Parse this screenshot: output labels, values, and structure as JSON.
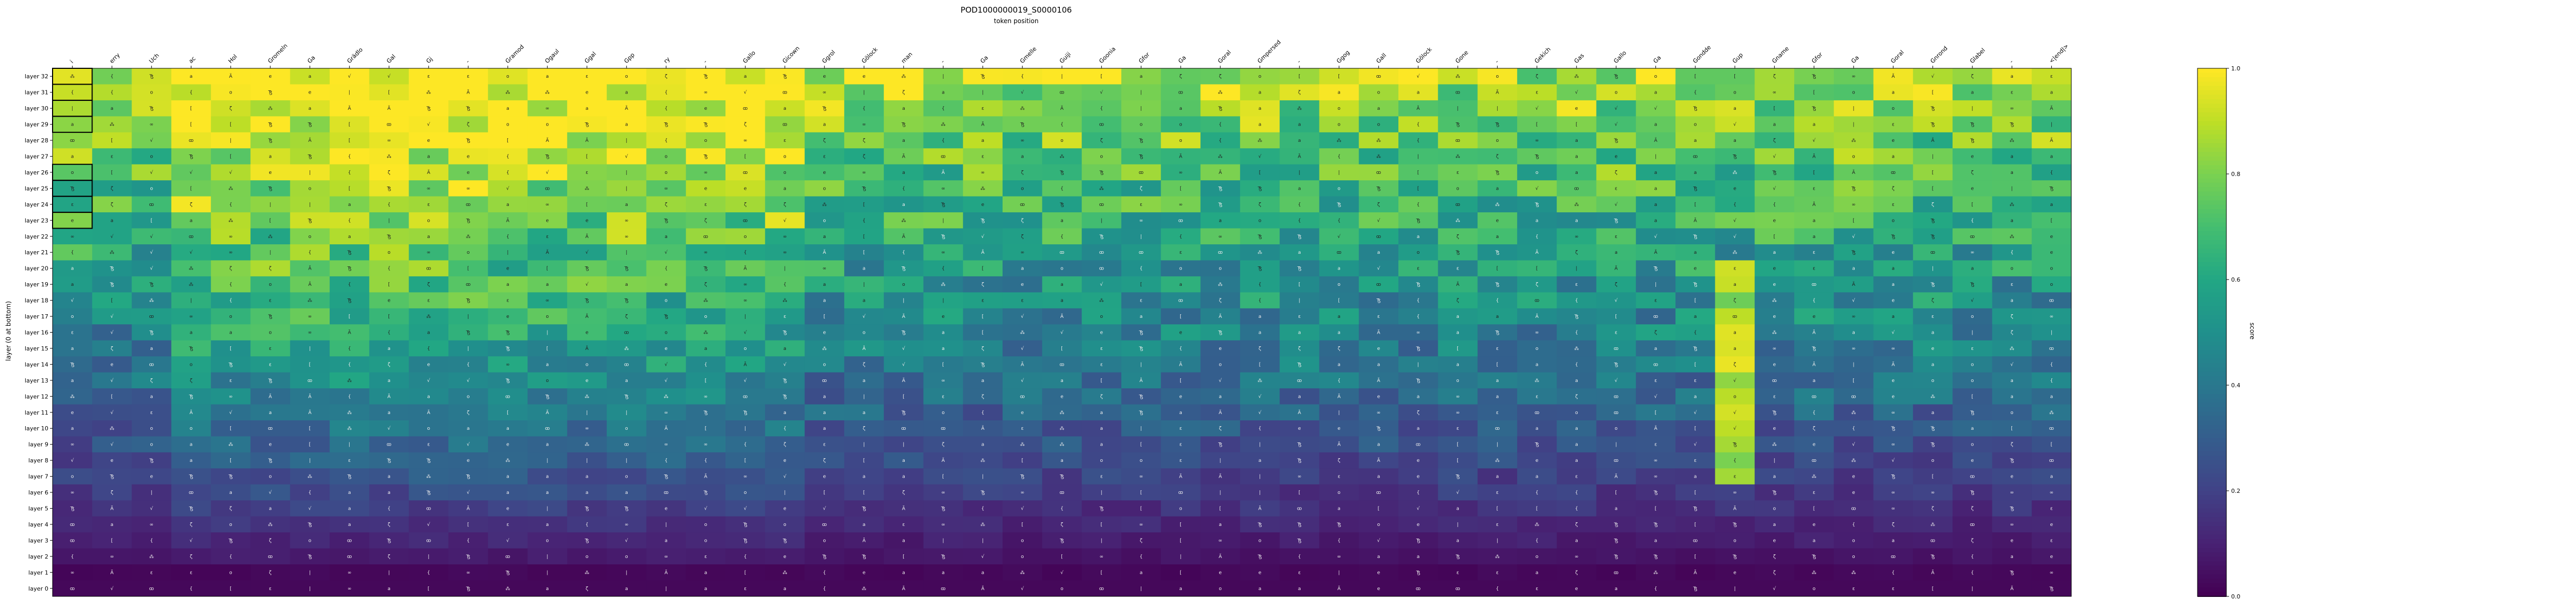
{
  "chart_data": {
    "type": "heatmap",
    "title": "POD1000000019_S0000106",
    "xlabel": "token position",
    "ylabel": "layer (0 at bottom)",
    "colorbar_label": "score",
    "colorbar_ticks": [
      0.0,
      0.2,
      0.4,
      0.6,
      0.8,
      1.0
    ],
    "value_range": [
      0,
      1
    ],
    "colormap": "viridis",
    "x_tokens": [
      "i",
      "erry",
      "Uch",
      "ac",
      "Hol",
      "Gromeln",
      "Ga",
      "Grädlo",
      "Gal",
      "Gj",
      "-",
      "Gramod",
      "Ogaul",
      "Ggal",
      "Gpp",
      "ry",
      "-",
      "Gallo",
      "Gicown",
      "Ggrol",
      "Gölock",
      "man",
      "-",
      "Ga",
      "Gmelle",
      "Guiji",
      "Goonia",
      "Gfor",
      "Ga",
      "Goral",
      "Gmpersed",
      "-",
      "Ggog",
      "Gall",
      "Gölock",
      "Gone",
      "-",
      "Gekich",
      "Gas",
      "Gallo",
      "Ga",
      "Gondde",
      "Gup",
      "Gname",
      "Gfor",
      "Ga",
      "Goral",
      "Gnrond",
      "Glabel",
      "-",
      "<|end|>"
    ],
    "y_layers": [
      "layer 32",
      "layer 31",
      "layer 30",
      "layer 29",
      "layer 28",
      "layer 27",
      "layer 26",
      "layer 25",
      "layer 24",
      "layer 23",
      "layer 22",
      "layer 21",
      "layer 20",
      "layer 19",
      "layer 18",
      "layer 17",
      "layer 16",
      "layer 15",
      "layer 14",
      "layer 13",
      "layer 12",
      "layer 11",
      "layer 10",
      "layer 9",
      "layer 8",
      "layer 7",
      "layer 6",
      "layer 5",
      "layer 4",
      "layer 3",
      "layer 2",
      "layer 1",
      "layer 0"
    ],
    "cell_glyphs": [
      "a",
      "ε",
      "Ꜩ",
      "ꝏ",
      "⁂",
      "{",
      "[",
      "|",
      "Ã",
      "∞",
      "√",
      "ζ",
      "e",
      "a",
      "Ꜩ",
      "o"
    ],
    "highlighted_cells": [
      {
        "layer": "layer 32",
        "token_index": 0
      },
      {
        "layer": "layer 31",
        "token_index": 0
      },
      {
        "layer": "layer 30",
        "token_index": 0
      },
      {
        "layer": "layer 29",
        "token_index": 0
      },
      {
        "layer": "layer 26",
        "token_index": 0
      },
      {
        "layer": "layer 25",
        "token_index": 0
      },
      {
        "layer": "layer 24",
        "token_index": 0
      },
      {
        "layer": "layer 23",
        "token_index": 0
      }
    ],
    "notes_top_pattern": "upper layers (26-32) near 1.0 for tokens 3-18, declining gradient toward layer 0 where all values ~0.0"
  },
  "colors": {
    "background": "#ffffff",
    "axis": "#000000"
  }
}
